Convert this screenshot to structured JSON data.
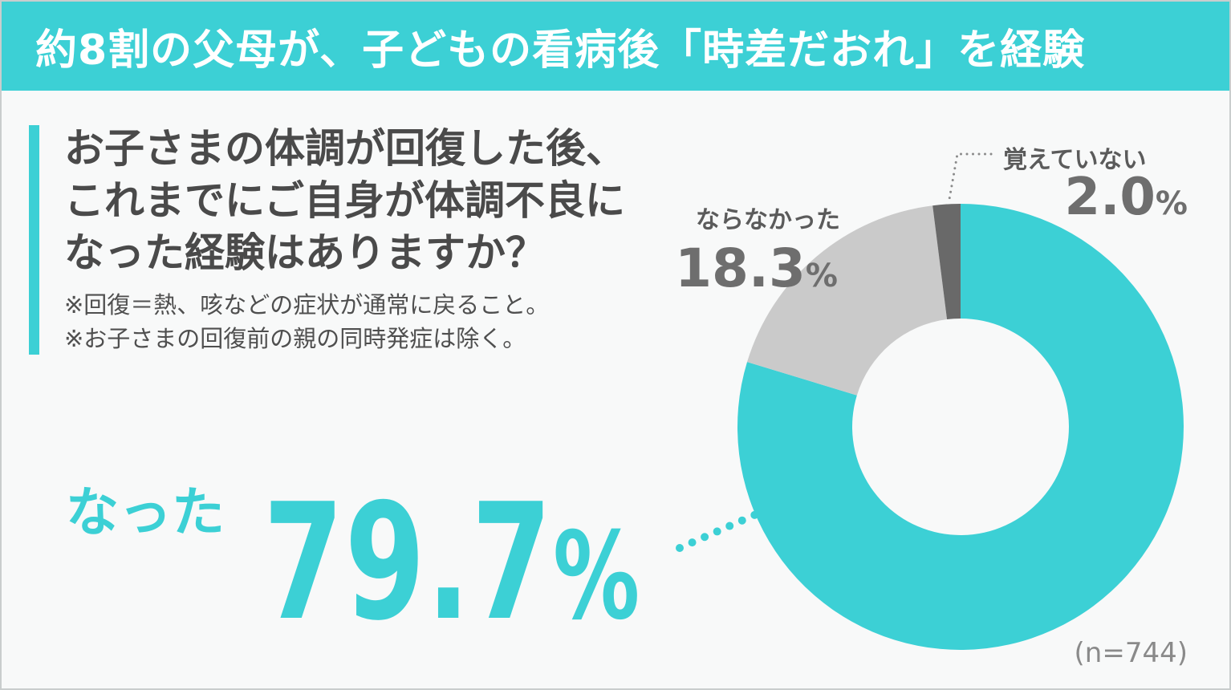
{
  "header": {
    "title": "約8割の父母が、子どもの看病後「時差だおれ」を経験"
  },
  "question": {
    "lines": [
      "お子さまの体調が回復した後、",
      "これまでにご自身が体調不良に",
      "なった経験はありますか？"
    ],
    "notes": [
      "※回復＝熱、咳などの症状が通常に戻ること。",
      "※お子さまの回復前の親の同時発症は除く。"
    ]
  },
  "chart_data": {
    "type": "pie",
    "donut": true,
    "direction": "clockwise",
    "start_angle_deg": 0,
    "unit": "%",
    "sample_label": "(n=744)",
    "segments": [
      {
        "label": "なった",
        "value": 79.7,
        "value_text": "79.7",
        "color": "#3cd0d5"
      },
      {
        "label": "ならなかった",
        "value": 18.3,
        "value_text": "18.3",
        "color": "#cacaca"
      },
      {
        "label": "覚えていない",
        "value": 2.0,
        "value_text": "2.0",
        "color": "#696969"
      }
    ],
    "colors": {
      "accent_teal": "#3cd0d5",
      "label_gray": "#5b5b5b",
      "value_gray": "#6e6e6e",
      "leader_gray": "#8a8a8a",
      "background": "#f8f9f9"
    }
  }
}
